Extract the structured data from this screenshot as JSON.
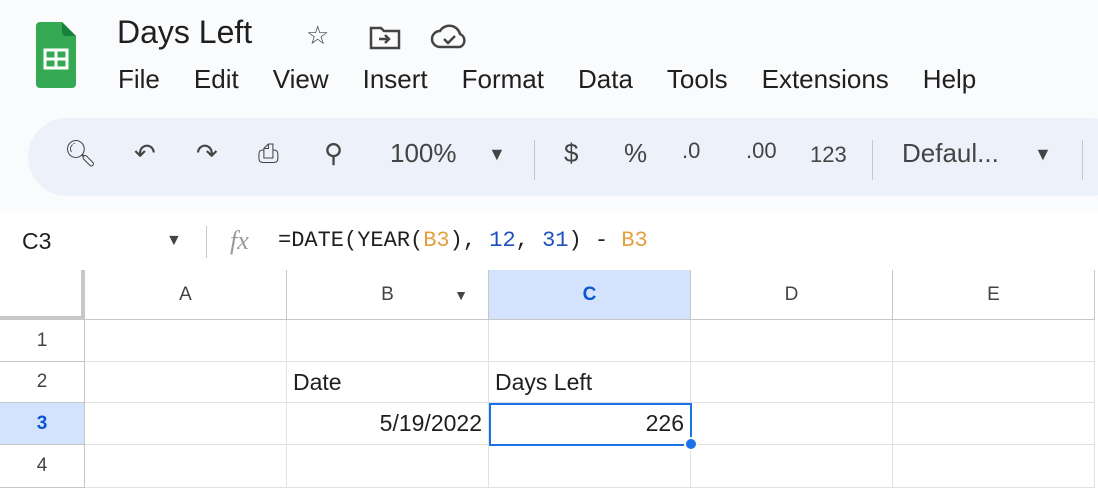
{
  "app": {
    "title": "Days Left",
    "icons": [
      "star-icon",
      "move-to-folder-icon",
      "cloud-saved-icon"
    ]
  },
  "menu": [
    "File",
    "Edit",
    "View",
    "Insert",
    "Format",
    "Data",
    "Tools",
    "Extensions",
    "Help"
  ],
  "toolbar": {
    "zoom": "100%",
    "currency": "$",
    "percent": "%",
    "dec_decrease": ".0",
    "dec_increase": ".00",
    "number_format": "123",
    "font": "Defaul..."
  },
  "formula_bar": {
    "cell_ref": "C3",
    "fx": "fx",
    "formula_parts": [
      {
        "t": "=DATE(YEAR(",
        "c": "#1f1f1f"
      },
      {
        "t": "B3",
        "c": "#e2a03f"
      },
      {
        "t": "), ",
        "c": "#1f1f1f"
      },
      {
        "t": "12",
        "c": "#1a4fbd"
      },
      {
        "t": ", ",
        "c": "#1f1f1f"
      },
      {
        "t": "31",
        "c": "#1a4fbd"
      },
      {
        "t": ") - ",
        "c": "#1f1f1f"
      },
      {
        "t": "B3",
        "c": "#e2a03f"
      }
    ]
  },
  "grid": {
    "columns": [
      "A",
      "B",
      "C",
      "D",
      "E"
    ],
    "rows": [
      "1",
      "2",
      "3",
      "4"
    ],
    "cells": {
      "B2": "Date",
      "C2": "Days Left",
      "B3": "5/19/2022",
      "C3": "226"
    },
    "selected": "C3",
    "accent": "#1a73e8"
  }
}
